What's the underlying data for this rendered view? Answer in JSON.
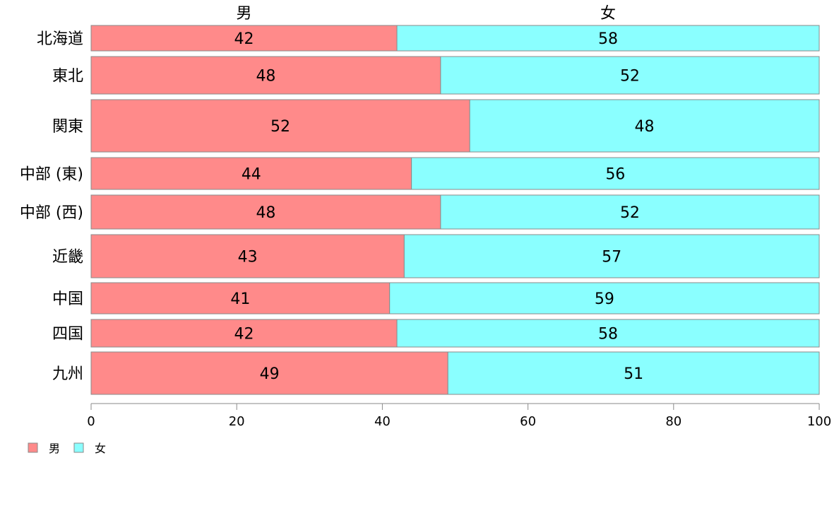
{
  "chart_data": {
    "type": "bar",
    "orientation": "horizontal",
    "stacked": true,
    "categories": [
      "北海道",
      "東北",
      "関東",
      "中部 (東)",
      "中部 (西)",
      "近畿",
      "中国",
      "四国",
      "九州"
    ],
    "series": [
      {
        "name": "男",
        "color": "#ff8a8a",
        "values": [
          42,
          48,
          52,
          44,
          48,
          43,
          41,
          42,
          49
        ]
      },
      {
        "name": "女",
        "color": "#8affff",
        "values": [
          58,
          52,
          48,
          56,
          52,
          57,
          59,
          58,
          51
        ]
      }
    ],
    "xlim": [
      0,
      100
    ],
    "xticks": [
      "0",
      "20",
      "40",
      "60",
      "80",
      "100"
    ],
    "legend_position": "bottom-left",
    "grid": false
  }
}
